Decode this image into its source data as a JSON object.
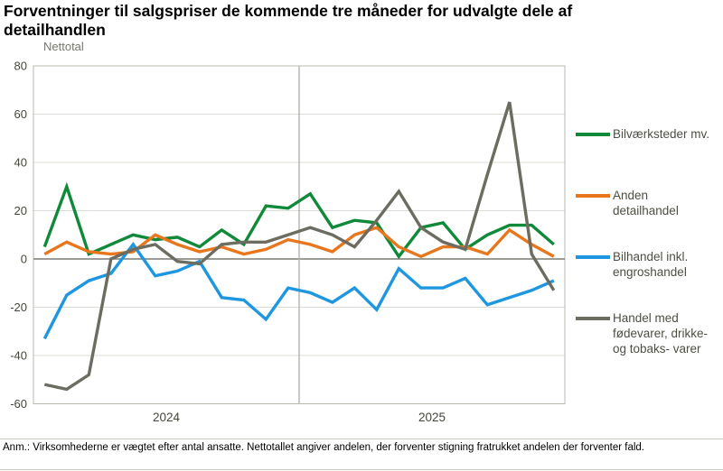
{
  "title": "Forventninger til salgspriser de kommende tre måneder for udvalgte dele af detailhandlen",
  "axis_label": "Nettotal",
  "footnote": "Anm.: Virksomhederne er vægtet efter antal ansatte. Nettotallet angiver andelen, der forventer stigning fratrukket andelen der forventer fald.",
  "chart_data": {
    "type": "line",
    "title": "Forventninger til salgspriser de kommende tre måneder for udvalgte dele af detailhandlen",
    "ylabel": "Nettotal",
    "ylim": [
      -60,
      80
    ],
    "y_ticks": [
      80,
      60,
      40,
      20,
      0,
      -20,
      -40,
      -60
    ],
    "x_year_labels": [
      "2024",
      "2025"
    ],
    "x_count": 24,
    "x_note": "monthly points, years 2024 and 2025, vertical divider between the years",
    "grid": "horizontal",
    "legend_position": "right",
    "colors": {
      "grid": "#dcdcd6",
      "border": "#b9b9af",
      "zero_line": "#7c7c74",
      "year_divider": "#b3b3ab",
      "tick_text": "#45463a"
    },
    "series": [
      {
        "name": "Bilværksteder mv.",
        "color": "#108a3a",
        "values": [
          5,
          30,
          2,
          6,
          10,
          8,
          9,
          5,
          12,
          6,
          22,
          21,
          27,
          13,
          16,
          15,
          1,
          13,
          15,
          4,
          10,
          14,
          14,
          6
        ]
      },
      {
        "name": "Anden detailhandel",
        "color": "#e8761d",
        "values": [
          2,
          7,
          3,
          2,
          3,
          10,
          6,
          3,
          5,
          2,
          4,
          8,
          6,
          3,
          10,
          13,
          5,
          1,
          5,
          5,
          2,
          12,
          6,
          1
        ]
      },
      {
        "name": "Bilhandel inkl. engroshandel",
        "color": "#1e97e0",
        "values": [
          -33,
          -15,
          -9,
          -6,
          6,
          -7,
          -5,
          -1,
          -16,
          -17,
          -25,
          -12,
          -14,
          -18,
          -12,
          -21,
          -4,
          -12,
          -12,
          -8,
          -19,
          -16,
          -13,
          -9
        ]
      },
      {
        "name": "Handel med fødevarer, drikke- og tobaks- varer",
        "color": "#6c6d60",
        "values": [
          -52,
          -54,
          -48,
          0,
          4,
          6,
          -1,
          -2,
          6,
          7,
          7,
          10,
          13,
          10,
          5,
          16,
          28,
          13,
          7,
          4,
          35,
          65,
          2,
          -13
        ]
      }
    ]
  }
}
